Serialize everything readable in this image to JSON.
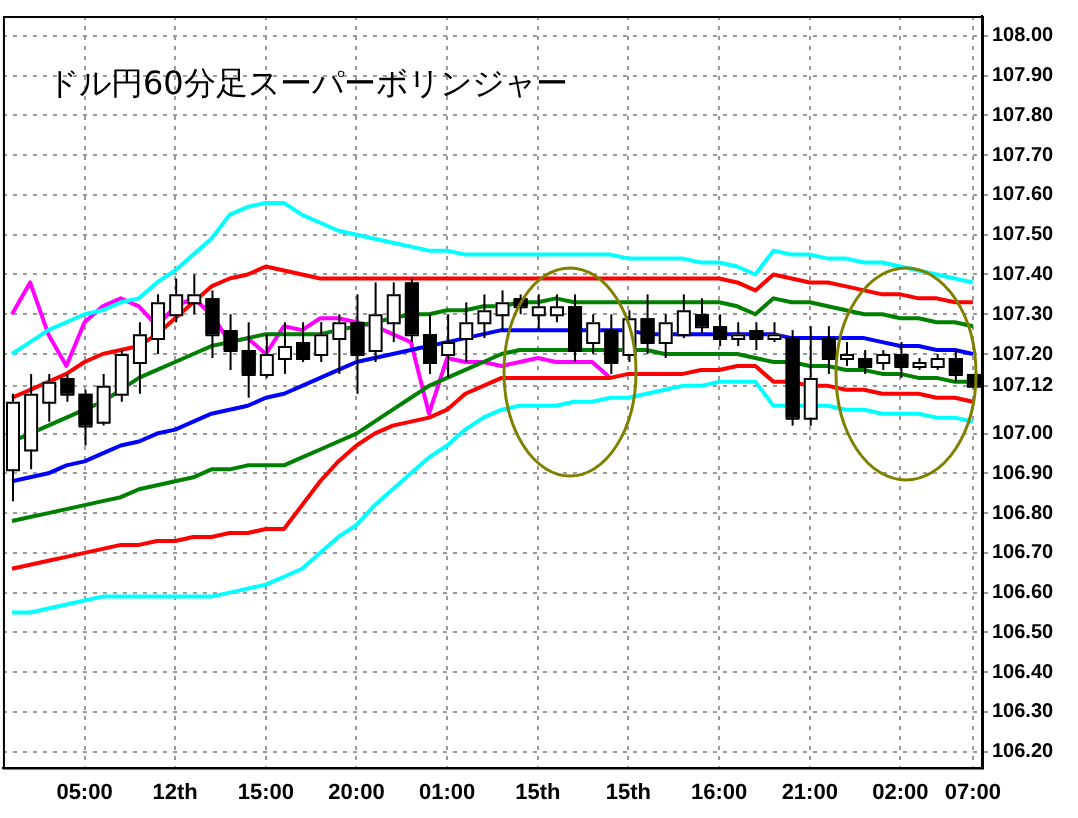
{
  "chart_data": {
    "type": "candlestick",
    "title": "ドル円60分足スーパーボリンジャー",
    "categories": [
      null,
      null,
      null,
      null,
      "05:00",
      null,
      null,
      null,
      null,
      "12th",
      null,
      null,
      null,
      null,
      "15:00",
      null,
      null,
      null,
      null,
      "20:00",
      null,
      null,
      null,
      null,
      "01:00",
      null,
      null,
      null,
      null,
      "15th",
      null,
      null,
      null,
      null,
      "15th",
      null,
      null,
      null,
      null,
      "16:00",
      null,
      null,
      null,
      null,
      "21:00",
      null,
      null,
      null,
      null,
      "02:00",
      null,
      null,
      null,
      "07:00"
    ],
    "ohlc": [
      [
        106.91,
        107.1,
        106.83,
        107.08
      ],
      [
        106.96,
        107.15,
        106.91,
        107.1
      ],
      [
        107.08,
        107.15,
        107.03,
        107.13
      ],
      [
        107.14,
        107.15,
        107.08,
        107.1
      ],
      [
        107.1,
        107.11,
        106.97,
        107.02
      ],
      [
        107.03,
        107.15,
        107.02,
        107.12
      ],
      [
        107.1,
        107.21,
        107.08,
        107.2
      ],
      [
        107.18,
        107.28,
        107.1,
        107.25
      ],
      [
        107.24,
        107.35,
        107.2,
        107.33
      ],
      [
        107.3,
        107.39,
        107.28,
        107.35
      ],
      [
        107.33,
        107.4,
        107.3,
        107.35
      ],
      [
        107.34,
        107.36,
        107.19,
        107.25
      ],
      [
        107.26,
        107.3,
        107.16,
        107.21
      ],
      [
        107.21,
        107.28,
        107.09,
        107.15
      ],
      [
        107.15,
        107.25,
        107.14,
        107.2
      ],
      [
        107.19,
        107.28,
        107.15,
        107.22
      ],
      [
        107.23,
        107.28,
        107.18,
        107.19
      ],
      [
        107.2,
        107.28,
        107.18,
        107.25
      ],
      [
        107.24,
        107.3,
        107.15,
        107.28
      ],
      [
        107.28,
        107.35,
        107.1,
        107.2
      ],
      [
        107.21,
        107.38,
        107.18,
        107.3
      ],
      [
        107.28,
        107.38,
        107.23,
        107.35
      ],
      [
        107.38,
        107.39,
        107.23,
        107.25
      ],
      [
        107.25,
        107.3,
        107.15,
        107.18
      ],
      [
        107.2,
        107.3,
        107.14,
        107.23
      ],
      [
        107.24,
        107.33,
        107.18,
        107.28
      ],
      [
        107.28,
        107.35,
        107.24,
        107.31
      ],
      [
        107.3,
        107.36,
        107.26,
        107.33
      ],
      [
        107.34,
        107.35,
        107.3,
        107.32
      ],
      [
        107.3,
        107.35,
        107.26,
        107.32
      ],
      [
        107.3,
        107.35,
        107.28,
        107.32
      ],
      [
        107.32,
        107.35,
        107.18,
        107.21
      ],
      [
        107.23,
        107.3,
        107.2,
        107.28
      ],
      [
        107.26,
        107.3,
        107.15,
        107.18
      ],
      [
        107.2,
        107.31,
        107.18,
        107.29
      ],
      [
        107.29,
        107.35,
        107.2,
        107.23
      ],
      [
        107.23,
        107.3,
        107.19,
        107.28
      ],
      [
        107.25,
        107.35,
        107.24,
        107.31
      ],
      [
        107.3,
        107.34,
        107.25,
        107.27
      ],
      [
        107.27,
        107.3,
        107.22,
        107.24
      ],
      [
        107.24,
        107.28,
        107.22,
        107.25
      ],
      [
        107.26,
        107.28,
        107.21,
        107.24
      ],
      [
        107.24,
        107.28,
        107.23,
        107.25
      ],
      [
        107.24,
        107.26,
        107.02,
        107.04
      ],
      [
        107.04,
        107.27,
        107.02,
        107.14
      ],
      [
        107.24,
        107.27,
        107.15,
        107.19
      ],
      [
        107.19,
        107.23,
        107.17,
        107.2
      ],
      [
        107.19,
        107.21,
        107.15,
        107.17
      ],
      [
        107.18,
        107.21,
        107.16,
        107.2
      ],
      [
        107.2,
        107.23,
        107.14,
        107.17
      ],
      [
        107.17,
        107.19,
        107.16,
        107.18
      ],
      [
        107.17,
        107.2,
        107.16,
        107.19
      ],
      [
        107.19,
        107.21,
        107.13,
        107.15
      ],
      [
        107.15,
        107.15,
        107.12,
        107.12
      ]
    ],
    "series": [
      {
        "type": "line",
        "color": "#00ffff",
        "values": [
          107.2,
          107.23,
          107.26,
          107.28,
          107.3,
          107.31,
          107.33,
          107.34,
          107.38,
          107.41,
          107.45,
          107.49,
          107.55,
          107.57,
          107.58,
          107.58,
          107.55,
          107.53,
          107.51,
          107.5,
          107.49,
          107.48,
          107.47,
          107.46,
          107.46,
          107.45,
          107.45,
          107.45,
          107.45,
          107.45,
          107.45,
          107.45,
          107.45,
          107.45,
          107.44,
          107.44,
          107.44,
          107.44,
          107.43,
          107.43,
          107.42,
          107.4,
          107.46,
          107.45,
          107.45,
          107.44,
          107.44,
          107.43,
          107.43,
          107.42,
          107.41,
          107.4,
          107.39,
          107.38
        ]
      },
      {
        "type": "line",
        "color": "#ff0000",
        "values": [
          107.09,
          107.11,
          107.13,
          107.15,
          107.18,
          107.2,
          107.21,
          107.22,
          107.25,
          107.29,
          107.33,
          107.37,
          107.39,
          107.4,
          107.42,
          107.41,
          107.4,
          107.39,
          107.39,
          107.39,
          107.39,
          107.39,
          107.39,
          107.39,
          107.39,
          107.39,
          107.39,
          107.39,
          107.39,
          107.39,
          107.39,
          107.39,
          107.39,
          107.39,
          107.39,
          107.39,
          107.39,
          107.39,
          107.39,
          107.39,
          107.38,
          107.36,
          107.4,
          107.39,
          107.38,
          107.38,
          107.37,
          107.36,
          107.35,
          107.35,
          107.34,
          107.34,
          107.33,
          107.33
        ]
      },
      {
        "type": "line",
        "color": "#008000",
        "values": [
          106.98,
          107.0,
          107.02,
          107.04,
          107.06,
          107.08,
          107.11,
          107.14,
          107.16,
          107.18,
          107.2,
          107.22,
          107.23,
          107.24,
          107.25,
          107.25,
          107.25,
          107.25,
          107.26,
          107.27,
          107.28,
          107.29,
          107.3,
          107.3,
          107.31,
          107.31,
          107.32,
          107.32,
          107.33,
          107.33,
          107.34,
          107.33,
          107.33,
          107.33,
          107.33,
          107.33,
          107.33,
          107.33,
          107.33,
          107.33,
          107.32,
          107.3,
          107.34,
          107.33,
          107.33,
          107.32,
          107.31,
          107.3,
          107.3,
          107.29,
          107.29,
          107.28,
          107.28,
          107.27
        ]
      },
      {
        "type": "line",
        "color": "#0000ff",
        "values": [
          106.88,
          106.89,
          106.9,
          106.92,
          106.93,
          106.95,
          106.97,
          106.98,
          107.0,
          107.01,
          107.03,
          107.05,
          107.06,
          107.07,
          107.09,
          107.1,
          107.12,
          107.14,
          107.16,
          107.18,
          107.19,
          107.2,
          107.21,
          107.22,
          107.23,
          107.24,
          107.25,
          107.26,
          107.26,
          107.26,
          107.26,
          107.26,
          107.26,
          107.26,
          107.26,
          107.25,
          107.25,
          107.25,
          107.25,
          107.25,
          107.25,
          107.25,
          107.25,
          107.24,
          107.24,
          107.24,
          107.24,
          107.24,
          107.23,
          107.22,
          107.22,
          107.21,
          107.21,
          107.2
        ]
      },
      {
        "type": "line",
        "color": "#008000",
        "values": [
          106.78,
          106.79,
          106.8,
          106.81,
          106.82,
          106.83,
          106.84,
          106.86,
          106.87,
          106.88,
          106.89,
          106.91,
          106.91,
          106.92,
          106.92,
          106.92,
          106.94,
          106.96,
          106.98,
          107.0,
          107.03,
          107.06,
          107.09,
          107.12,
          107.14,
          107.16,
          107.18,
          107.2,
          107.21,
          107.21,
          107.21,
          107.21,
          107.21,
          107.21,
          107.21,
          107.21,
          107.2,
          107.2,
          107.2,
          107.2,
          107.2,
          107.19,
          107.18,
          107.18,
          107.17,
          107.17,
          107.16,
          107.16,
          107.15,
          107.15,
          107.14,
          107.14,
          107.13,
          107.13
        ]
      },
      {
        "type": "line",
        "color": "#ff0000",
        "values": [
          106.66,
          106.67,
          106.68,
          106.69,
          106.7,
          106.71,
          106.72,
          106.72,
          106.73,
          106.73,
          106.74,
          106.74,
          106.75,
          106.75,
          106.76,
          106.76,
          106.82,
          106.88,
          106.93,
          106.97,
          107.0,
          107.02,
          107.03,
          107.04,
          107.06,
          107.1,
          107.12,
          107.14,
          107.14,
          107.14,
          107.14,
          107.14,
          107.14,
          107.14,
          107.15,
          107.15,
          107.15,
          107.15,
          107.16,
          107.16,
          107.17,
          107.17,
          107.13,
          107.13,
          107.12,
          107.12,
          107.11,
          107.11,
          107.1,
          107.1,
          107.1,
          107.09,
          107.09,
          107.08
        ]
      },
      {
        "type": "line",
        "color": "#00ffff",
        "values": [
          106.55,
          106.55,
          106.56,
          106.57,
          106.58,
          106.59,
          106.59,
          106.59,
          106.59,
          106.59,
          106.59,
          106.59,
          106.6,
          106.61,
          106.62,
          106.64,
          106.66,
          106.7,
          106.74,
          106.77,
          106.82,
          106.86,
          106.9,
          106.94,
          106.97,
          107.01,
          107.04,
          107.06,
          107.07,
          107.07,
          107.07,
          107.08,
          107.08,
          107.09,
          107.09,
          107.1,
          107.11,
          107.12,
          107.12,
          107.13,
          107.13,
          107.13,
          107.07,
          107.07,
          107.07,
          107.07,
          107.06,
          107.06,
          107.05,
          107.05,
          107.05,
          107.04,
          107.04,
          107.03
        ]
      },
      {
        "type": "line",
        "color": "#ff00ff",
        "values": [
          107.3,
          107.38,
          107.25,
          107.17,
          107.28,
          107.32,
          107.34,
          107.32,
          107.27,
          107.32,
          107.34,
          107.3,
          107.23,
          107.24,
          107.2,
          107.27,
          107.26,
          107.29,
          107.29,
          107.28,
          107.27,
          107.25,
          107.23,
          107.05,
          107.19,
          107.18,
          107.18,
          107.17,
          107.18,
          107.19,
          107.18,
          107.18,
          107.18,
          107.14,
          null,
          null,
          null,
          null,
          null,
          null,
          null,
          null,
          null,
          null,
          null,
          null,
          null,
          null,
          null,
          null,
          null,
          null,
          null,
          null
        ]
      }
    ],
    "ylim": [
      106.16,
      108.05
    ],
    "yticks": [
      {
        "value": 108,
        "label": "108.00"
      },
      {
        "value": 107.9,
        "label": "107.90"
      },
      {
        "value": 107.8,
        "label": "107.80"
      },
      {
        "value": 107.7,
        "label": "107.70"
      },
      {
        "value": 107.6,
        "label": "107.60"
      },
      {
        "value": 107.5,
        "label": "107.50"
      },
      {
        "value": 107.4,
        "label": "107.40"
      },
      {
        "value": 107.3,
        "label": "107.30"
      },
      {
        "value": 107.2,
        "label": "107.20"
      },
      {
        "value": 107.12,
        "label": "107.12"
      },
      {
        "value": 107,
        "label": "107.00"
      },
      {
        "value": 106.9,
        "label": "106.90"
      },
      {
        "value": 106.8,
        "label": "106.80"
      },
      {
        "value": 106.7,
        "label": "106.70"
      },
      {
        "value": 106.6,
        "label": "106.60"
      },
      {
        "value": 106.5,
        "label": "106.50"
      },
      {
        "value": 106.4,
        "label": "106.40"
      },
      {
        "value": 106.3,
        "label": "106.30"
      },
      {
        "value": 106.2,
        "label": "106.20"
      }
    ],
    "grid": true
  }
}
